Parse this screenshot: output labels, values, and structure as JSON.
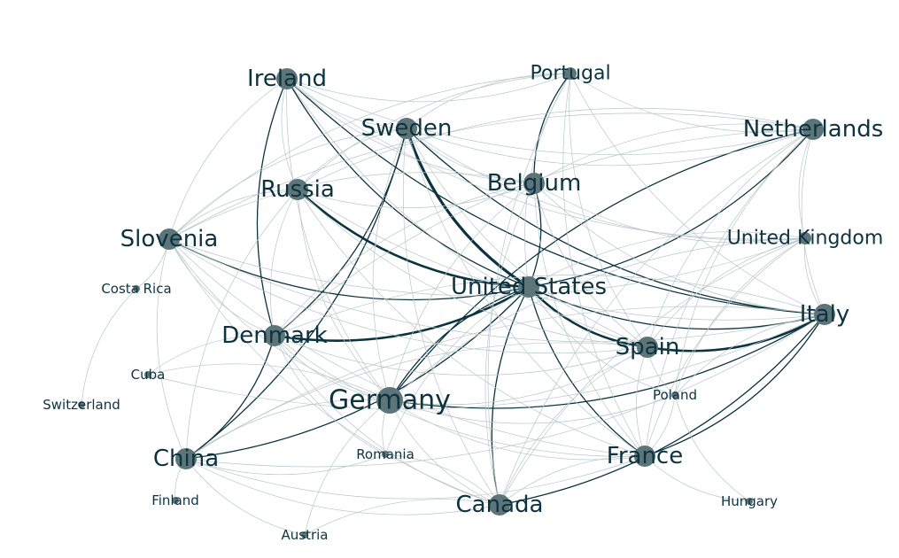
{
  "graph": {
    "colors": {
      "node": "#5d7578",
      "label": "#0d3340",
      "edge_heavy": "#0b3340",
      "edge_light": "#b9c6c8"
    },
    "nodes": [
      {
        "id": "us",
        "label": "United States",
        "tier": "medium"
      },
      {
        "id": "germany",
        "label": "Germany",
        "tier": "large"
      },
      {
        "id": "ireland",
        "label": "Ireland",
        "tier": "medium"
      },
      {
        "id": "portugal",
        "label": "Portugal",
        "tier": "small"
      },
      {
        "id": "sweden",
        "label": "Sweden",
        "tier": "medium"
      },
      {
        "id": "netherlands",
        "label": "Netherlands",
        "tier": "medium"
      },
      {
        "id": "russia",
        "label": "Russia",
        "tier": "medium"
      },
      {
        "id": "belgium",
        "label": "Belgium",
        "tier": "medium"
      },
      {
        "id": "slovenia",
        "label": "Slovenia",
        "tier": "medium"
      },
      {
        "id": "uk",
        "label": "United Kingdom",
        "tier": "small"
      },
      {
        "id": "costarica",
        "label": "Costa Rica",
        "tier": "tiny"
      },
      {
        "id": "italy",
        "label": "Italy",
        "tier": "medium"
      },
      {
        "id": "denmark",
        "label": "Denmark",
        "tier": "medium"
      },
      {
        "id": "spain",
        "label": "Spain",
        "tier": "medium"
      },
      {
        "id": "cuba",
        "label": "Cuba",
        "tier": "tiny"
      },
      {
        "id": "poland",
        "label": "Poland",
        "tier": "tiny"
      },
      {
        "id": "switzerland",
        "label": "Switzerland",
        "tier": "tiny"
      },
      {
        "id": "china",
        "label": "China",
        "tier": "medium"
      },
      {
        "id": "romania",
        "label": "Romania",
        "tier": "tiny"
      },
      {
        "id": "france",
        "label": "France",
        "tier": "medium"
      },
      {
        "id": "canada",
        "label": "Canada",
        "tier": "medium"
      },
      {
        "id": "finland",
        "label": "Finland",
        "tier": "tiny"
      },
      {
        "id": "hungary",
        "label": "Hungary",
        "tier": "tiny"
      },
      {
        "id": "austria",
        "label": "Austria",
        "tier": "tiny"
      }
    ],
    "edges": [
      {
        "source": "sweden",
        "target": "us",
        "weight": 4
      },
      {
        "source": "us",
        "target": "spain",
        "weight": 3
      },
      {
        "source": "spain",
        "target": "italy",
        "weight": 3
      },
      {
        "source": "russia",
        "target": "us",
        "weight": 3
      },
      {
        "source": "denmark",
        "target": "us",
        "weight": 3
      },
      {
        "source": "ireland",
        "target": "us",
        "weight": 2
      },
      {
        "source": "us",
        "target": "germany",
        "weight": 2
      },
      {
        "source": "us",
        "target": "france",
        "weight": 2
      },
      {
        "source": "us",
        "target": "canada",
        "weight": 2
      },
      {
        "source": "us",
        "target": "italy",
        "weight": 2
      },
      {
        "source": "us",
        "target": "belgium",
        "weight": 2
      },
      {
        "source": "us",
        "target": "netherlands",
        "weight": 2
      },
      {
        "source": "china",
        "target": "us",
        "weight": 2
      },
      {
        "source": "ireland",
        "target": "italy",
        "weight": 2
      },
      {
        "source": "germany",
        "target": "italy",
        "weight": 2
      },
      {
        "source": "canada",
        "target": "italy",
        "weight": 2
      },
      {
        "source": "france",
        "target": "italy",
        "weight": 2
      },
      {
        "source": "denmark",
        "target": "sweden",
        "weight": 2
      },
      {
        "source": "ireland",
        "target": "denmark",
        "weight": 2
      },
      {
        "source": "portugal",
        "target": "belgium",
        "weight": 2
      },
      {
        "source": "netherlands",
        "target": "germany",
        "weight": 2
      },
      {
        "source": "slovenia",
        "target": "us",
        "weight": 2
      },
      {
        "source": "sweden",
        "target": "italy",
        "weight": 2
      },
      {
        "source": "china",
        "target": "sweden",
        "weight": 2
      },
      {
        "source": "china",
        "target": "denmark",
        "weight": 2
      },
      {
        "source": "germany",
        "target": "spain",
        "weight": 1
      },
      {
        "source": "ireland",
        "target": "portugal",
        "weight": 1
      },
      {
        "source": "ireland",
        "target": "netherlands",
        "weight": 1
      },
      {
        "source": "ireland",
        "target": "sweden",
        "weight": 1
      },
      {
        "source": "ireland",
        "target": "russia",
        "weight": 1
      },
      {
        "source": "ireland",
        "target": "belgium",
        "weight": 1
      },
      {
        "source": "ireland",
        "target": "slovenia",
        "weight": 1
      },
      {
        "source": "ireland",
        "target": "spain",
        "weight": 1
      },
      {
        "source": "ireland",
        "target": "germany",
        "weight": 1
      },
      {
        "source": "ireland",
        "target": "uk",
        "weight": 1
      },
      {
        "source": "portugal",
        "target": "sweden",
        "weight": 1
      },
      {
        "source": "portugal",
        "target": "netherlands",
        "weight": 1
      },
      {
        "source": "portugal",
        "target": "us",
        "weight": 1
      },
      {
        "source": "portugal",
        "target": "spain",
        "weight": 1
      },
      {
        "source": "portugal",
        "target": "russia",
        "weight": 1
      },
      {
        "source": "portugal",
        "target": "slovenia",
        "weight": 1
      },
      {
        "source": "portugal",
        "target": "france",
        "weight": 1
      },
      {
        "source": "portugal",
        "target": "canada",
        "weight": 1
      },
      {
        "source": "portugal",
        "target": "italy",
        "weight": 1
      },
      {
        "source": "sweden",
        "target": "netherlands",
        "weight": 1
      },
      {
        "source": "sweden",
        "target": "russia",
        "weight": 1
      },
      {
        "source": "sweden",
        "target": "belgium",
        "weight": 1
      },
      {
        "source": "sweden",
        "target": "slovenia",
        "weight": 1
      },
      {
        "source": "sweden",
        "target": "germany",
        "weight": 1
      },
      {
        "source": "sweden",
        "target": "spain",
        "weight": 1
      },
      {
        "source": "sweden",
        "target": "france",
        "weight": 1
      },
      {
        "source": "sweden",
        "target": "uk",
        "weight": 1
      },
      {
        "source": "sweden",
        "target": "canada",
        "weight": 1
      },
      {
        "source": "netherlands",
        "target": "belgium",
        "weight": 1
      },
      {
        "source": "netherlands",
        "target": "uk",
        "weight": 1
      },
      {
        "source": "netherlands",
        "target": "italy",
        "weight": 1
      },
      {
        "source": "netherlands",
        "target": "spain",
        "weight": 1
      },
      {
        "source": "netherlands",
        "target": "france",
        "weight": 1
      },
      {
        "source": "netherlands",
        "target": "canada",
        "weight": 1
      },
      {
        "source": "netherlands",
        "target": "poland",
        "weight": 1
      },
      {
        "source": "netherlands",
        "target": "russia",
        "weight": 1
      },
      {
        "source": "netherlands",
        "target": "denmark",
        "weight": 1
      },
      {
        "source": "netherlands",
        "target": "slovenia",
        "weight": 1
      },
      {
        "source": "russia",
        "target": "belgium",
        "weight": 1
      },
      {
        "source": "russia",
        "target": "slovenia",
        "weight": 1
      },
      {
        "source": "russia",
        "target": "denmark",
        "weight": 1
      },
      {
        "source": "russia",
        "target": "germany",
        "weight": 1
      },
      {
        "source": "russia",
        "target": "spain",
        "weight": 1
      },
      {
        "source": "russia",
        "target": "china",
        "weight": 1
      },
      {
        "source": "russia",
        "target": "france",
        "weight": 1
      },
      {
        "source": "russia",
        "target": "italy",
        "weight": 1
      },
      {
        "source": "belgium",
        "target": "italy",
        "weight": 1
      },
      {
        "source": "belgium",
        "target": "spain",
        "weight": 1
      },
      {
        "source": "belgium",
        "target": "germany",
        "weight": 1
      },
      {
        "source": "belgium",
        "target": "france",
        "weight": 1
      },
      {
        "source": "belgium",
        "target": "canada",
        "weight": 1
      },
      {
        "source": "belgium",
        "target": "denmark",
        "weight": 1
      },
      {
        "source": "belgium",
        "target": "uk",
        "weight": 1
      },
      {
        "source": "belgium",
        "target": "slovenia",
        "weight": 1
      },
      {
        "source": "slovenia",
        "target": "denmark",
        "weight": 1
      },
      {
        "source": "slovenia",
        "target": "germany",
        "weight": 1
      },
      {
        "source": "slovenia",
        "target": "china",
        "weight": 1
      },
      {
        "source": "slovenia",
        "target": "spain",
        "weight": 1
      },
      {
        "source": "slovenia",
        "target": "italy",
        "weight": 1
      },
      {
        "source": "slovenia",
        "target": "france",
        "weight": 1
      },
      {
        "source": "slovenia",
        "target": "canada",
        "weight": 1
      },
      {
        "source": "uk",
        "target": "italy",
        "weight": 1
      },
      {
        "source": "uk",
        "target": "france",
        "weight": 1
      },
      {
        "source": "uk",
        "target": "spain",
        "weight": 1
      },
      {
        "source": "uk",
        "target": "us",
        "weight": 1
      },
      {
        "source": "uk",
        "target": "germany",
        "weight": 1
      },
      {
        "source": "uk",
        "target": "canada",
        "weight": 1
      },
      {
        "source": "uk",
        "target": "poland",
        "weight": 1
      },
      {
        "source": "costarica",
        "target": "switzerland",
        "weight": 1
      },
      {
        "source": "italy",
        "target": "denmark",
        "weight": 1
      },
      {
        "source": "italy",
        "target": "poland",
        "weight": 1
      },
      {
        "source": "italy",
        "target": "china",
        "weight": 1
      },
      {
        "source": "denmark",
        "target": "germany",
        "weight": 1
      },
      {
        "source": "denmark",
        "target": "spain",
        "weight": 1
      },
      {
        "source": "denmark",
        "target": "france",
        "weight": 1
      },
      {
        "source": "denmark",
        "target": "canada",
        "weight": 1
      },
      {
        "source": "denmark",
        "target": "cuba",
        "weight": 1
      },
      {
        "source": "denmark",
        "target": "romania",
        "weight": 1
      },
      {
        "source": "spain",
        "target": "france",
        "weight": 1
      },
      {
        "source": "spain",
        "target": "canada",
        "weight": 1
      },
      {
        "source": "spain",
        "target": "china",
        "weight": 1
      },
      {
        "source": "spain",
        "target": "poland",
        "weight": 1
      },
      {
        "source": "germany",
        "target": "france",
        "weight": 1
      },
      {
        "source": "germany",
        "target": "canada",
        "weight": 1
      },
      {
        "source": "germany",
        "target": "china",
        "weight": 1
      },
      {
        "source": "germany",
        "target": "poland",
        "weight": 1
      },
      {
        "source": "germany",
        "target": "romania",
        "weight": 1
      },
      {
        "source": "germany",
        "target": "cuba",
        "weight": 1
      },
      {
        "source": "germany",
        "target": "austria",
        "weight": 1
      },
      {
        "source": "china",
        "target": "france",
        "weight": 1
      },
      {
        "source": "china",
        "target": "canada",
        "weight": 1
      },
      {
        "source": "china",
        "target": "finland",
        "weight": 1
      },
      {
        "source": "china",
        "target": "austria",
        "weight": 1
      },
      {
        "source": "china",
        "target": "romania",
        "weight": 1
      },
      {
        "source": "france",
        "target": "canada",
        "weight": 1
      },
      {
        "source": "france",
        "target": "hungary",
        "weight": 1
      },
      {
        "source": "france",
        "target": "poland",
        "weight": 1
      },
      {
        "source": "canada",
        "target": "austria",
        "weight": 1
      },
      {
        "source": "canada",
        "target": "romania",
        "weight": 1
      },
      {
        "source": "us",
        "target": "poland",
        "weight": 1
      },
      {
        "source": "us",
        "target": "romania",
        "weight": 1
      },
      {
        "source": "cuba",
        "target": "italy",
        "weight": 1
      },
      {
        "source": "poland",
        "target": "hungary",
        "weight": 1
      },
      {
        "source": "china",
        "target": "italy",
        "weight": 1
      },
      {
        "source": "slovenia",
        "target": "uk",
        "weight": 1
      },
      {
        "source": "costarica",
        "target": "slovenia",
        "weight": 1
      }
    ]
  }
}
